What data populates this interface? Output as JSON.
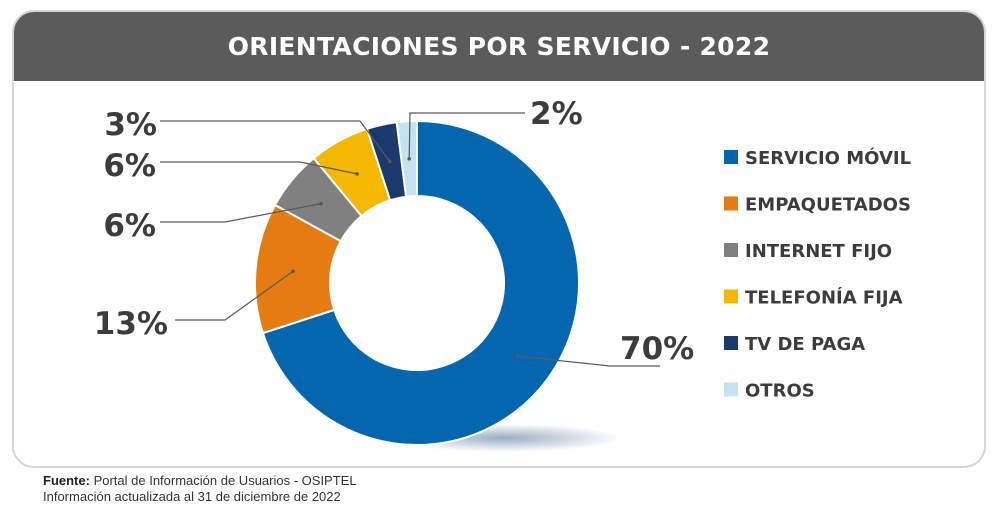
{
  "chart_data": {
    "type": "pie",
    "style": "donut",
    "title": "ORIENTACIONES POR SERVICIO - 2022",
    "categories": [
      "SERVICIO MÓVIL",
      "EMPAQUETADOS",
      "INTERNET FIJO",
      "TELEFONÍA FIJA",
      "TV DE PAGA",
      "OTROS"
    ],
    "values": [
      70,
      13,
      6,
      6,
      3,
      2
    ],
    "value_labels": [
      "70%",
      "13%",
      "6%",
      "6%",
      "3%",
      "2%"
    ],
    "colors": [
      "#0566b0",
      "#e57c11",
      "#808080",
      "#f4b800",
      "#1a3a6e",
      "#c6e2f0"
    ],
    "legend_position": "right",
    "unit": "%"
  },
  "footer": {
    "source_label": "Fuente:",
    "source_text": " Portal de Información de Usuarios - OSIPTEL",
    "updated_text": "Información actualizada al 31 de diciembre de 2022"
  }
}
